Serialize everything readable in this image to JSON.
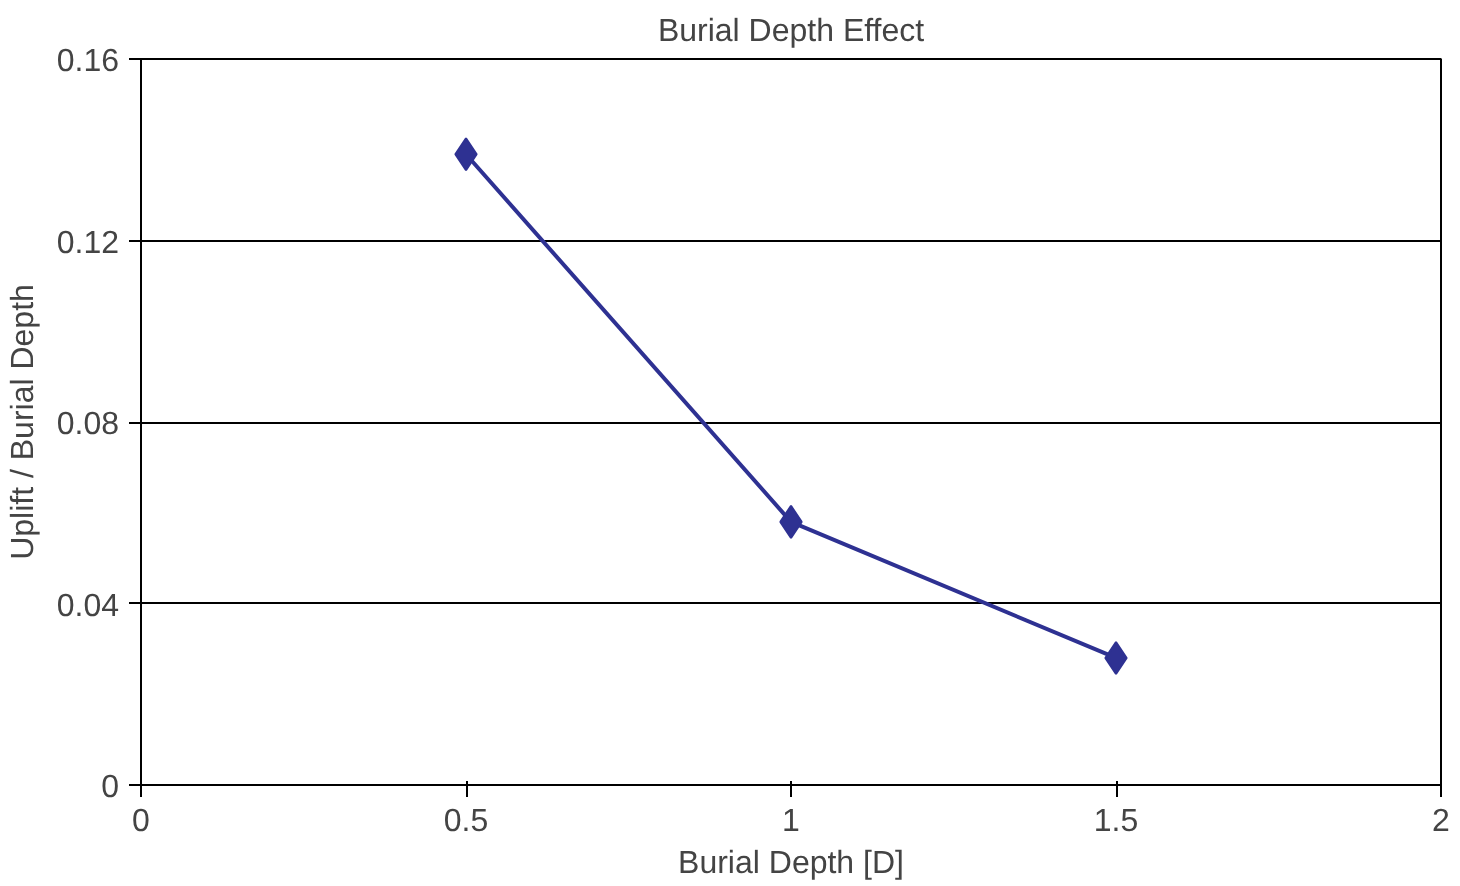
{
  "chart_data": {
    "type": "line",
    "title": "Burial Depth Effect",
    "xlabel": "Burial Depth [D]",
    "ylabel": "Uplift / Burial Depth",
    "x": [
      0.5,
      1,
      1.5
    ],
    "series": [
      {
        "color": "#2e3192",
        "values": [
          0.139,
          0.058,
          0.028
        ]
      }
    ],
    "xlim": [
      0,
      2
    ],
    "xticks": [
      0,
      0.5,
      1,
      1.5,
      2
    ],
    "ylim": [
      0,
      0.16
    ],
    "yticks": [
      0,
      0.04,
      0.08,
      0.12,
      0.16
    ],
    "grid": "y",
    "marker": "diamond",
    "line_style": "solid"
  }
}
